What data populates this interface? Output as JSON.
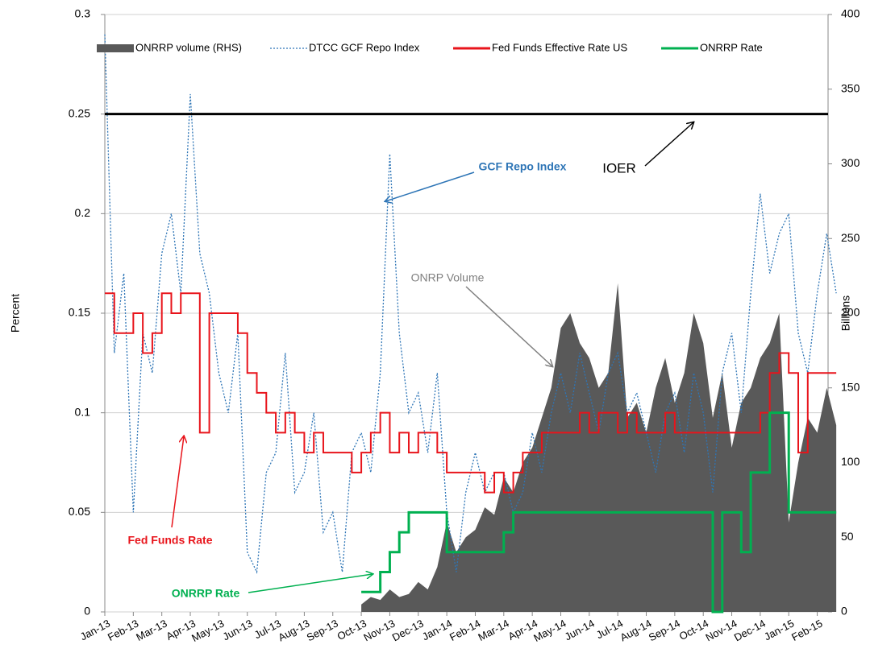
{
  "chart_data": {
    "type": "line",
    "y_label": "Percent",
    "y2_label": "Billions",
    "categories": [
      "Jan-13",
      null,
      null,
      "Feb-13",
      null,
      null,
      "Mar-13",
      null,
      null,
      "Apr-13",
      null,
      null,
      "May-13",
      null,
      null,
      "Jun-13",
      null,
      null,
      "Jul-13",
      null,
      null,
      "Aug-13",
      null,
      null,
      "Sep-13",
      null,
      null,
      "Oct-13",
      null,
      null,
      "Nov-13",
      null,
      null,
      "Dec-13",
      null,
      null,
      "Jan-14",
      null,
      null,
      "Feb-14",
      null,
      null,
      "Mar-14",
      null,
      null,
      "Apr-14",
      null,
      null,
      "May-14",
      null,
      null,
      "Jun-14",
      null,
      null,
      "Jul-14",
      null,
      null,
      "Aug-14",
      null,
      null,
      "Sep-14",
      null,
      null,
      "Oct-14",
      null,
      null,
      "Nov-14",
      null,
      null,
      "Dec-14",
      null,
      null,
      "Jan-15",
      null,
      null,
      "Feb-15",
      null,
      null
    ],
    "ylim": [
      0,
      0.3
    ],
    "yticks": [
      0,
      0.05,
      0.1,
      0.15,
      0.2,
      0.25,
      0.3
    ],
    "y2lim": [
      0,
      400
    ],
    "y2ticks": [
      0,
      50,
      100,
      150,
      200,
      250,
      300,
      350,
      400
    ],
    "grid": true,
    "series": [
      {
        "name": "ONRRP volume (RHS)",
        "color": "#595959",
        "style": "area",
        "axis": "y2",
        "values": [
          null,
          null,
          null,
          null,
          null,
          null,
          null,
          null,
          null,
          null,
          null,
          null,
          null,
          null,
          null,
          null,
          null,
          null,
          null,
          null,
          null,
          null,
          null,
          null,
          null,
          null,
          null,
          5,
          10,
          8,
          15,
          10,
          12,
          20,
          15,
          30,
          60,
          40,
          50,
          55,
          70,
          65,
          90,
          80,
          100,
          110,
          130,
          150,
          190,
          200,
          180,
          170,
          150,
          160,
          220,
          130,
          140,
          120,
          150,
          170,
          140,
          160,
          200,
          180,
          130,
          160,
          110,
          140,
          150,
          170,
          180,
          200,
          60,
          100,
          130,
          120,
          150,
          125
        ]
      },
      {
        "name": "DTCC GCF Repo Index",
        "color": "#2e75b6",
        "style": "dotted",
        "values": [
          0.29,
          0.13,
          0.17,
          0.05,
          0.14,
          0.12,
          0.18,
          0.2,
          0.16,
          0.26,
          0.18,
          0.16,
          0.12,
          0.1,
          0.14,
          0.03,
          0.02,
          0.07,
          0.08,
          0.13,
          0.06,
          0.07,
          0.1,
          0.04,
          0.05,
          0.02,
          0.08,
          0.09,
          0.07,
          0.12,
          0.23,
          0.14,
          0.1,
          0.11,
          0.08,
          0.12,
          0.05,
          0.02,
          0.06,
          0.08,
          0.06,
          0.07,
          0.07,
          0.05,
          0.06,
          0.09,
          0.07,
          0.1,
          0.12,
          0.1,
          0.13,
          0.11,
          0.09,
          0.12,
          0.13,
          0.1,
          0.11,
          0.09,
          0.07,
          0.1,
          0.11,
          0.08,
          0.12,
          0.1,
          0.06,
          0.12,
          0.14,
          0.1,
          0.16,
          0.21,
          0.17,
          0.19,
          0.2,
          0.14,
          0.12,
          0.16,
          0.19,
          0.16
        ]
      },
      {
        "name": "Fed Funds  Effective Rate US",
        "color": "#e8141b",
        "style": "step",
        "values": [
          0.16,
          0.14,
          0.14,
          0.15,
          0.13,
          0.14,
          0.16,
          0.15,
          0.16,
          0.16,
          0.09,
          0.15,
          0.15,
          0.15,
          0.14,
          0.12,
          0.11,
          0.1,
          0.09,
          0.1,
          0.09,
          0.08,
          0.09,
          0.08,
          0.08,
          0.08,
          0.07,
          0.08,
          0.09,
          0.1,
          0.08,
          0.09,
          0.08,
          0.09,
          0.09,
          0.08,
          0.07,
          0.07,
          0.07,
          0.07,
          0.06,
          0.07,
          0.06,
          0.07,
          0.08,
          0.08,
          0.09,
          0.09,
          0.09,
          0.09,
          0.1,
          0.09,
          0.1,
          0.1,
          0.09,
          0.1,
          0.09,
          0.09,
          0.09,
          0.1,
          0.09,
          0.09,
          0.09,
          0.09,
          0.09,
          0.09,
          0.09,
          0.09,
          0.09,
          0.1,
          0.12,
          0.13,
          0.12,
          0.08,
          0.12,
          0.12,
          0.12,
          0.12
        ]
      },
      {
        "name": "ONRRP Rate",
        "color": "#00b050",
        "style": "step",
        "values": [
          null,
          null,
          null,
          null,
          null,
          null,
          null,
          null,
          null,
          null,
          null,
          null,
          null,
          null,
          null,
          null,
          null,
          null,
          null,
          null,
          null,
          null,
          null,
          null,
          null,
          null,
          null,
          0.01,
          0.01,
          0.02,
          0.03,
          0.04,
          0.05,
          0.05,
          0.05,
          0.05,
          0.03,
          0.03,
          0.03,
          0.03,
          0.03,
          0.03,
          0.04,
          0.05,
          0.05,
          0.05,
          0.05,
          0.05,
          0.05,
          0.05,
          0.05,
          0.05,
          0.05,
          0.05,
          0.05,
          0.05,
          0.05,
          0.05,
          0.05,
          0.05,
          0.05,
          0.05,
          0.05,
          0.05,
          0,
          0.05,
          0.05,
          0.03,
          0.07,
          0.07,
          0.1,
          0.1,
          0.05,
          0.05,
          0.05,
          0.05,
          0.05,
          0.05
        ]
      }
    ],
    "reference_lines": [
      {
        "value": 0.25,
        "label": "IOER",
        "color": "#000000"
      }
    ],
    "annotations": [
      {
        "text": "GCF Repo Index",
        "color": "#2e75b6"
      },
      {
        "text": "ONRP Volume",
        "color": "#7f7f7f"
      },
      {
        "text": "Fed Funds Rate",
        "color": "#e8141b"
      },
      {
        "text": "ONRRP Rate",
        "color": "#00b050"
      }
    ]
  }
}
